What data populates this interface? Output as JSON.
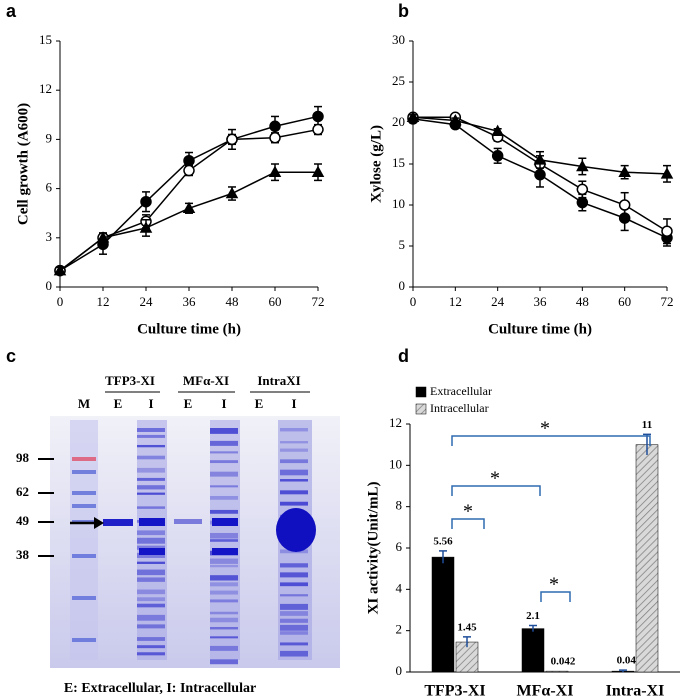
{
  "chart_data": [
    {
      "type": "line",
      "panel": "a",
      "y_label": "Cell growth (A600)",
      "x_label": "Culture time (h)",
      "x": [
        0,
        12,
        24,
        36,
        48,
        60,
        72
      ],
      "xlim": [
        0,
        72
      ],
      "xticks": [
        0,
        12,
        24,
        36,
        48,
        60,
        72
      ],
      "ylim": [
        0,
        15
      ],
      "yticks": [
        0,
        3,
        6,
        9,
        12,
        15
      ],
      "color": "#000000",
      "series": [
        {
          "marker": "filled-circle",
          "values": [
            1,
            2.6,
            5.2,
            7.7,
            9.0,
            9.8,
            10.4
          ],
          "errors": [
            0.2,
            0.6,
            0.6,
            0.5,
            0.6,
            0.6,
            0.6
          ]
        },
        {
          "marker": "open-circle",
          "values": [
            1,
            3.0,
            4.0,
            7.1,
            9.0,
            9.1,
            9.6
          ],
          "errors": [
            0.2,
            0.2,
            0.4,
            0.3,
            0.3,
            0.3,
            0.3
          ]
        },
        {
          "marker": "filled-triangle",
          "values": [
            1,
            3.0,
            3.6,
            4.8,
            5.7,
            7.0,
            7.0
          ],
          "errors": [
            0.2,
            0.3,
            0.5,
            0.3,
            0.4,
            0.5,
            0.5
          ]
        }
      ]
    },
    {
      "type": "line",
      "panel": "b",
      "y_label": "Xylose (g/L)",
      "x_label": "Culture time (h)",
      "x": [
        0,
        12,
        24,
        36,
        48,
        60,
        72
      ],
      "xlim": [
        0,
        72
      ],
      "xticks": [
        0,
        12,
        24,
        36,
        48,
        60,
        72
      ],
      "ylim": [
        0,
        30
      ],
      "yticks": [
        0,
        5,
        10,
        15,
        20,
        25,
        30
      ],
      "color": "#000000",
      "series": [
        {
          "marker": "filled-circle",
          "values": [
            20.5,
            19.8,
            16.0,
            13.7,
            10.3,
            8.4,
            6.0
          ],
          "errors": [
            0.3,
            0.4,
            0.9,
            1.5,
            1.0,
            1.5,
            1.0
          ]
        },
        {
          "marker": "open-circle",
          "values": [
            20.7,
            20.7,
            18.3,
            15.0,
            11.9,
            10.0,
            6.8
          ],
          "errors": [
            0.3,
            0.3,
            0.5,
            1.0,
            1.0,
            1.5,
            1.5
          ]
        },
        {
          "marker": "filled-triangle",
          "values": [
            20.7,
            20.3,
            19.0,
            15.5,
            14.7,
            14.0,
            13.8
          ],
          "errors": [
            0.3,
            0.3,
            0.3,
            1.0,
            1.0,
            0.8,
            1.0
          ]
        }
      ]
    },
    {
      "type": "bar",
      "panel": "d",
      "y_label": "XI activity(Unit/mL)",
      "categories": [
        "TFP3-XI",
        "MFα-XI",
        "Intra-XI"
      ],
      "ylim": [
        0,
        12
      ],
      "yticks": [
        0,
        2,
        4,
        6,
        8,
        10,
        12
      ],
      "legend": "top-left",
      "series": [
        {
          "name": "Extracellular",
          "color": "#000000",
          "values": [
            5.56,
            2.1,
            0.042
          ],
          "errors": [
            0.3,
            0.15,
            0.05
          ]
        },
        {
          "name": "Intracellular",
          "color": "#bfbfbf",
          "hatch": true,
          "values": [
            1.45,
            0.042,
            11
          ],
          "errors": [
            0.25,
            0,
            0.5
          ]
        }
      ],
      "annotations": [
        "*",
        "*",
        "*",
        "*"
      ]
    }
  ],
  "gel": {
    "panel": "c",
    "groups": [
      "TFP3-XI",
      "MFα-XI",
      "IntraXI"
    ],
    "lanes": [
      "M",
      "E",
      "I",
      "E",
      "I",
      "E",
      "I"
    ],
    "markers": [
      "98",
      "62",
      "49",
      "38"
    ],
    "caption": "E: Extracellular, I: Intracellular"
  }
}
